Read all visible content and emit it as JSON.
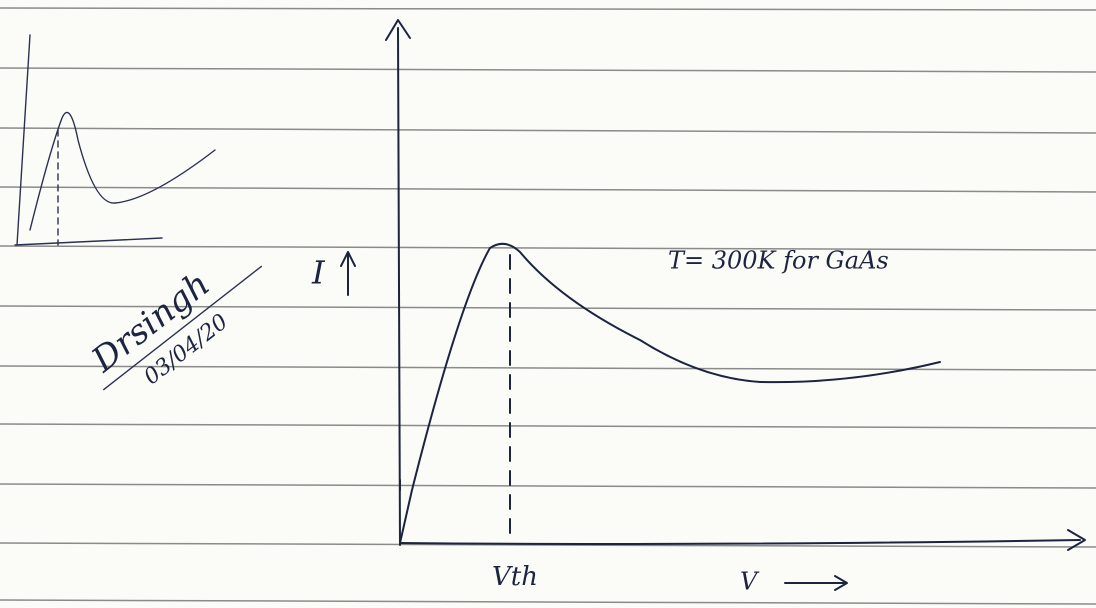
{
  "labels": {
    "current_axis": "I",
    "temperature_note": "T= 300K for GaAs",
    "threshold": "Vth",
    "voltage_axis": "V",
    "signature": "Drsingh",
    "date": "03/04/20"
  }
}
